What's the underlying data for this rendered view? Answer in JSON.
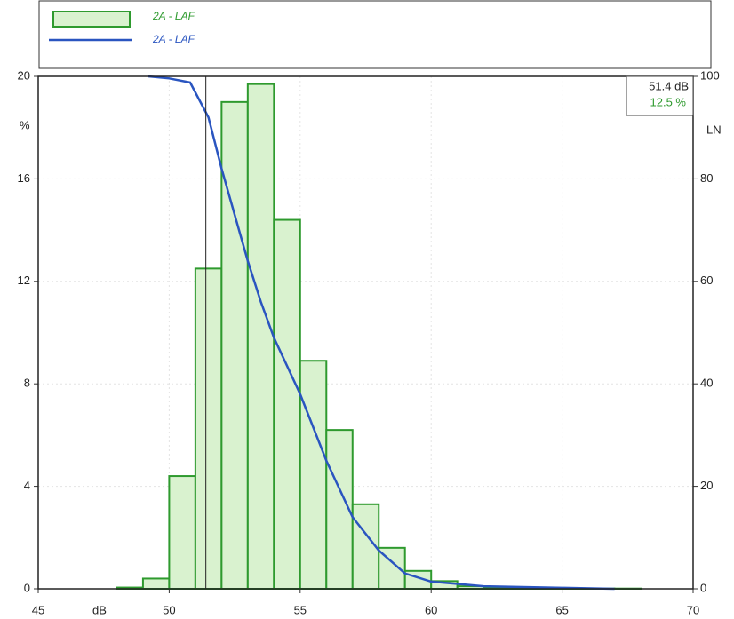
{
  "chart_data": {
    "type": "histogram",
    "xlabel": "dB",
    "ylabel": "%",
    "y2label": "LN",
    "xlim": [
      45,
      70
    ],
    "xticks": [
      45,
      50,
      55,
      60,
      65,
      70
    ],
    "ylim": [
      0,
      20
    ],
    "yticks": [
      0,
      4,
      8,
      12,
      16,
      20
    ],
    "y2lim": [
      0,
      100
    ],
    "y2ticks": [
      0,
      20,
      40,
      60,
      80,
      100
    ],
    "grid": true,
    "series": [
      {
        "name": "2A - LAF",
        "type": "histogram",
        "color": "#2e9a2e",
        "fill": "#d9f2cf",
        "bins": [
          48,
          49,
          50,
          51,
          52,
          53,
          54,
          55,
          56,
          57,
          58,
          59,
          60,
          61,
          62,
          63,
          64,
          65,
          66,
          67,
          68
        ],
        "values": [
          0.05,
          0.4,
          4.4,
          12.5,
          19.0,
          19.7,
          14.4,
          8.9,
          6.2,
          3.3,
          1.6,
          0.7,
          0.3,
          0.1,
          0.05,
          0.03,
          0.02,
          0.01,
          0.01,
          0.01
        ]
      },
      {
        "name": "2A - LAF",
        "type": "line",
        "axis": "y2",
        "color": "#2a55c0",
        "x": [
          49.2,
          50,
          50.8,
          51.5,
          52,
          52.5,
          53,
          53.5,
          54,
          55,
          56,
          57,
          58,
          59,
          60,
          62,
          65,
          67
        ],
        "values": [
          100,
          99.6,
          98.8,
          92,
          82,
          73,
          64,
          56,
          49,
          38,
          25,
          14,
          7.5,
          3,
          1.4,
          0.5,
          0.2,
          0
        ]
      }
    ],
    "cursor": {
      "x": 51.4,
      "x_label": "51.4 dB",
      "y_label": "12.5 %"
    }
  }
}
